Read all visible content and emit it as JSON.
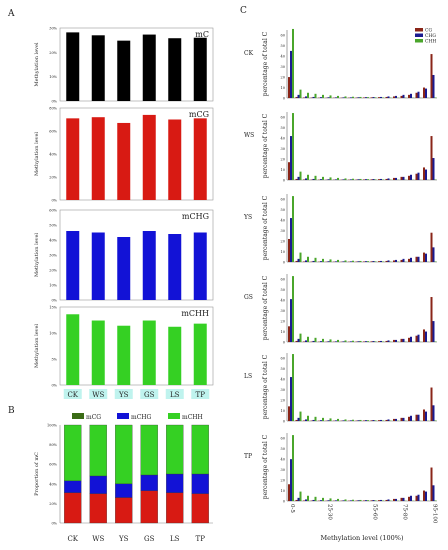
{
  "panel_labels": {
    "a": "A",
    "b": "B",
    "c": "C"
  },
  "colors": {
    "mC": "#000000",
    "mCG": "#d81a13",
    "mCHG": "#1212d6",
    "mCHH": "#35d023"
  },
  "chart_data": [
    {
      "type": "bar",
      "panel": "A1",
      "title": "mC",
      "ylabel": "Methylation level",
      "categories": [
        "CK",
        "WS",
        "YS",
        "GS",
        "LS",
        "TP"
      ],
      "values": [
        28.2,
        27.0,
        24.8,
        27.3,
        25.8,
        26.0
      ],
      "ylim": [
        0,
        30
      ],
      "yticks": [
        "0%",
        "10%",
        "20%",
        "30%"
      ]
    },
    {
      "type": "bar",
      "panel": "A2",
      "title": "mCG",
      "ylabel": "Methylation level",
      "categories": [
        "CK",
        "WS",
        "YS",
        "GS",
        "LS",
        "TP"
      ],
      "values": [
        71,
        72,
        67,
        74,
        70,
        71
      ],
      "ylim": [
        0,
        80
      ],
      "yticks": [
        "0%",
        "20%",
        "40%",
        "60%",
        "80%"
      ]
    },
    {
      "type": "bar",
      "panel": "A3",
      "title": "mCHG",
      "ylabel": "Methylation level",
      "categories": [
        "CK",
        "WS",
        "YS",
        "GS",
        "LS",
        "TP"
      ],
      "values": [
        46,
        45,
        42,
        46,
        44,
        45
      ],
      "ylim": [
        0,
        60
      ],
      "yticks": [
        "0%",
        "10%",
        "20%",
        "30%",
        "40%",
        "50%",
        "60%"
      ]
    },
    {
      "type": "bar",
      "panel": "A4",
      "title": "mCHH",
      "ylabel": "Methylation level",
      "categories": [
        "CK",
        "WS",
        "YS",
        "GS",
        "LS",
        "TP"
      ],
      "values": [
        13.6,
        12.4,
        11.4,
        12.4,
        11.2,
        11.8
      ],
      "ylim": [
        0,
        15
      ],
      "yticks": [
        "0%",
        "5%",
        "10%",
        "15%"
      ]
    },
    {
      "type": "bar",
      "stacked": true,
      "panel": "B",
      "ylabel": "Proportion of mC",
      "categories": [
        "CK",
        "WS",
        "YS",
        "GS",
        "LS",
        "TP"
      ],
      "series": [
        {
          "name": "mCG",
          "values": [
            31,
            30,
            26,
            33,
            31,
            30
          ]
        },
        {
          "name": "mCHG",
          "values": [
            12,
            18,
            14,
            16,
            19,
            20
          ]
        },
        {
          "name": "mCHH",
          "values": [
            57,
            52,
            60,
            51,
            50,
            50
          ]
        }
      ],
      "ylim": [
        0,
        100
      ],
      "yticks": [
        "0%",
        "20%",
        "40%",
        "60%",
        "80%",
        "100%"
      ],
      "legend": "top"
    },
    {
      "type": "bar",
      "panel": "C",
      "ylabel": "percentage of total C",
      "xlabel": "Methylation level (100%)",
      "xticks": [
        "0-5",
        "25-30",
        "55-60",
        "75-80",
        "95-100"
      ],
      "yticks": [
        "0",
        "10",
        "20",
        "30",
        "40",
        "50",
        "60"
      ],
      "ylim": [
        0,
        65
      ],
      "legend": "top-right",
      "legend_names": [
        "CG",
        "CHG",
        "CHH"
      ],
      "bins": 20,
      "samples": [
        {
          "name": "CK",
          "CG": [
            20,
            1,
            0.5,
            0.4,
            0.3,
            0.3,
            0.3,
            0.3,
            0.3,
            0.4,
            0.5,
            0.6,
            0.8,
            1,
            1.5,
            2,
            3,
            5,
            10,
            42
          ],
          "CHG": [
            45,
            3,
            1.5,
            1,
            0.8,
            0.7,
            0.6,
            0.6,
            0.6,
            0.7,
            0.8,
            0.9,
            1,
            1.5,
            2,
            3,
            4,
            6,
            9,
            22
          ],
          "CHH": [
            66,
            8,
            5,
            4,
            3,
            2.5,
            2,
            1.5,
            1.2,
            1,
            0.8,
            0.6,
            0.5,
            0.4,
            0.3,
            0.3,
            0.3,
            0.2,
            0.2,
            0.5
          ]
        },
        {
          "name": "WS",
          "CG": [
            17,
            1,
            0.5,
            0.4,
            0.3,
            0.3,
            0.3,
            0.3,
            0.3,
            0.4,
            0.5,
            0.6,
            0.8,
            1,
            2,
            3,
            4,
            6,
            12,
            42
          ],
          "CHG": [
            42,
            3,
            1.5,
            1,
            0.8,
            0.7,
            0.6,
            0.6,
            0.6,
            0.7,
            0.8,
            0.9,
            1,
            1.5,
            2,
            3,
            5,
            7,
            10,
            21
          ],
          "CHH": [
            64,
            8,
            5,
            4,
            3,
            2.5,
            2,
            1.5,
            1.2,
            1,
            0.8,
            0.6,
            0.5,
            0.4,
            0.3,
            0.3,
            0.3,
            0.2,
            0.2,
            0.5
          ]
        },
        {
          "name": "YS",
          "CG": [
            22,
            1,
            0.5,
            0.4,
            0.3,
            0.3,
            0.3,
            0.3,
            0.3,
            0.4,
            0.5,
            0.6,
            0.8,
            1,
            1.5,
            2,
            3,
            5,
            9,
            28
          ],
          "CHG": [
            42,
            3,
            1.5,
            1,
            0.8,
            0.7,
            0.6,
            0.6,
            0.6,
            0.7,
            0.8,
            0.9,
            1,
            1.5,
            2,
            3,
            4,
            5,
            8,
            14
          ],
          "CHH": [
            63,
            9,
            5,
            4,
            3,
            2.5,
            2,
            1.5,
            1.2,
            1,
            0.8,
            0.6,
            0.5,
            0.4,
            0.3,
            0.3,
            0.3,
            0.2,
            0.2,
            0.5
          ]
        },
        {
          "name": "GS",
          "CG": [
            15,
            1,
            0.5,
            0.4,
            0.3,
            0.3,
            0.3,
            0.3,
            0.3,
            0.4,
            0.5,
            0.6,
            0.8,
            1,
            2,
            3,
            4,
            6,
            12,
            43
          ],
          "CHG": [
            41,
            3,
            1.5,
            1,
            0.8,
            0.7,
            0.6,
            0.6,
            0.6,
            0.7,
            0.8,
            0.9,
            1,
            1.5,
            2,
            3,
            5,
            7,
            10,
            20
          ],
          "CHH": [
            63,
            8,
            5,
            4,
            3,
            2.5,
            2,
            1.5,
            1.2,
            1,
            0.8,
            0.6,
            0.5,
            0.4,
            0.3,
            0.3,
            0.3,
            0.2,
            0.2,
            0.5
          ]
        },
        {
          "name": "LS",
          "CG": [
            14,
            1,
            0.5,
            0.4,
            0.3,
            0.3,
            0.3,
            0.3,
            0.3,
            0.4,
            0.5,
            0.6,
            0.8,
            1,
            2,
            3,
            4,
            6,
            11,
            32
          ],
          "CHG": [
            42,
            3,
            1.5,
            1,
            0.8,
            0.7,
            0.6,
            0.6,
            0.6,
            0.7,
            0.8,
            0.9,
            1,
            1.5,
            2,
            3,
            5,
            6,
            9,
            15
          ],
          "CHH": [
            64,
            9,
            5,
            4,
            3,
            2.5,
            2,
            1.5,
            1.2,
            1,
            0.8,
            0.6,
            0.5,
            0.4,
            0.3,
            0.3,
            0.3,
            0.2,
            0.2,
            0.5
          ]
        },
        {
          "name": "TP",
          "CG": [
            16,
            1,
            0.5,
            0.4,
            0.3,
            0.3,
            0.3,
            0.3,
            0.3,
            0.4,
            0.5,
            0.6,
            0.8,
            1,
            2,
            3,
            4,
            5,
            10,
            32
          ],
          "CHG": [
            40,
            3,
            1.5,
            1,
            0.8,
            0.7,
            0.6,
            0.6,
            0.6,
            0.7,
            0.8,
            0.9,
            1,
            1.5,
            2,
            3,
            5,
            6,
            9,
            15
          ],
          "CHH": [
            63,
            9,
            5,
            4,
            3,
            2.5,
            2,
            1.5,
            1.2,
            1,
            0.8,
            0.6,
            0.5,
            0.4,
            0.3,
            0.3,
            0.3,
            0.2,
            0.2,
            0.5
          ]
        }
      ]
    }
  ]
}
